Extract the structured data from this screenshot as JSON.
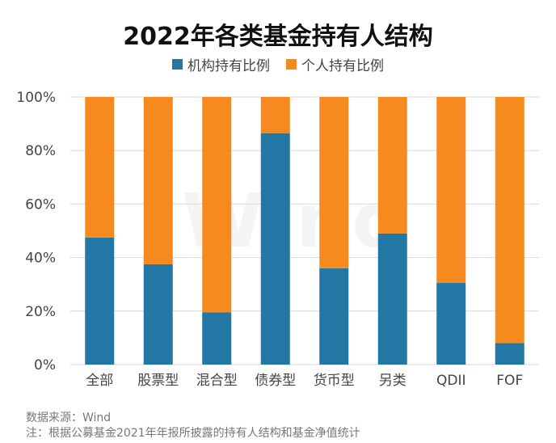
{
  "footer": {
    "source": "数据来源：Wind",
    "note": "注：根据公募基金2021年年报所披露的持有人结构和基金净值统计"
  },
  "watermark": "Wind",
  "colors": {
    "institutional": "#2277A4",
    "individual": "#F68A1E",
    "grid": "#D9D9D9",
    "axis_text": "#444444"
  },
  "chart_data": {
    "type": "bar",
    "stacked": true,
    "title": "2022年各类基金持有人结构",
    "xlabel": "",
    "ylabel": "",
    "ylim": [
      0,
      100
    ],
    "yticks": [
      "0%",
      "20%",
      "40%",
      "60%",
      "80%",
      "100%"
    ],
    "grid": true,
    "legend_position": "top-center",
    "categories": [
      "全部",
      "股票型",
      "混合型",
      "债券型",
      "货币型",
      "另类",
      "QDII",
      "FOF"
    ],
    "series": [
      {
        "name": "机构持有比例",
        "color": "#2277A4",
        "values": [
          47.5,
          37.5,
          19.5,
          86.5,
          36,
          49,
          30.5,
          8
        ]
      },
      {
        "name": "个人持有比例",
        "color": "#F68A1E",
        "values": [
          52.5,
          62.5,
          80.5,
          13.5,
          64,
          51,
          69.5,
          92
        ]
      }
    ]
  }
}
